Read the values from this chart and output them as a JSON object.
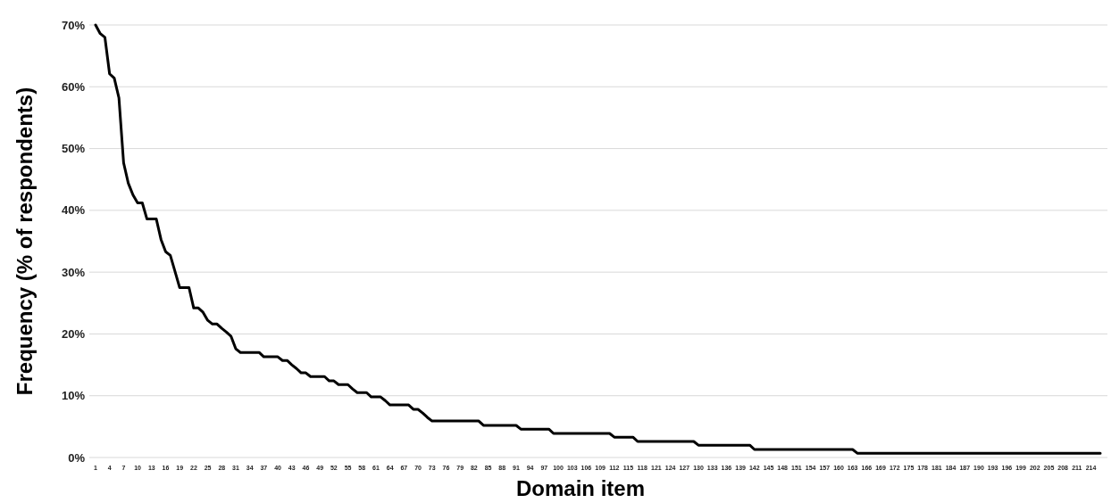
{
  "chart_data": {
    "type": "line",
    "xlabel": "Domain item",
    "ylabel": "Frequency (% of respondents)",
    "categories": [
      "1",
      null,
      null,
      "4",
      null,
      null,
      "7",
      null,
      null,
      "10",
      null,
      null,
      "13",
      null,
      null,
      "16",
      null,
      null,
      "19",
      null,
      null,
      "22",
      null,
      null,
      "25",
      null,
      null,
      "28",
      null,
      null,
      "31",
      null,
      null,
      "34",
      null,
      null,
      "37",
      null,
      null,
      "40",
      null,
      null,
      "43",
      null,
      null,
      "46",
      null,
      null,
      "49",
      null,
      null,
      "52",
      null,
      null,
      "55",
      null,
      null,
      "58",
      null,
      null,
      "61",
      null,
      null,
      "64",
      null,
      null,
      "67",
      null,
      null,
      "70",
      null,
      null,
      "73",
      null,
      null,
      "76",
      null,
      null,
      "79",
      null,
      null,
      "82",
      null,
      null,
      "85",
      null,
      null,
      "88",
      null,
      null,
      "91",
      null,
      null,
      "94",
      null,
      null,
      "97",
      null,
      null,
      "100",
      null,
      null,
      "103",
      null,
      null,
      "106",
      null,
      null,
      "109",
      null,
      null,
      "112",
      null,
      null,
      "115",
      null,
      null,
      "118",
      null,
      null,
      "121",
      null,
      null,
      "124",
      null,
      null,
      "127",
      null,
      null,
      "130",
      null,
      null,
      "133",
      null,
      null,
      "136",
      null,
      null,
      "139",
      null,
      null,
      "142",
      null,
      null,
      "145",
      null,
      null,
      "148",
      null,
      null,
      "151",
      null,
      null,
      "154",
      null,
      null,
      "157",
      null,
      null,
      "160",
      null,
      null,
      "163",
      null,
      null,
      "166",
      null,
      null,
      "169",
      null,
      null,
      "172",
      null,
      null,
      "175",
      null,
      null,
      "178",
      null,
      null,
      "181",
      null,
      null,
      "184",
      null,
      null,
      "187",
      null,
      null,
      "190",
      null,
      null,
      "193",
      null,
      null,
      "196",
      null,
      null,
      "199",
      null,
      null,
      "202",
      null,
      null,
      "205",
      null,
      null,
      "208",
      null,
      null,
      "211",
      null,
      null,
      "214",
      null,
      null
    ],
    "series": [
      {
        "color": "#000000",
        "values": [
          70.0,
          68.6,
          68.0,
          62.1,
          61.4,
          58.2,
          47.7,
          44.4,
          42.5,
          41.2,
          41.2,
          38.6,
          38.6,
          38.6,
          35.3,
          33.3,
          32.7,
          30.1,
          27.5,
          27.5,
          27.5,
          24.2,
          24.2,
          23.5,
          22.2,
          21.6,
          21.6,
          20.9,
          20.3,
          19.6,
          17.6,
          17.0,
          17.0,
          17.0,
          17.0,
          17.0,
          16.3,
          16.3,
          16.3,
          16.3,
          15.7,
          15.7,
          15.0,
          14.4,
          13.7,
          13.7,
          13.1,
          13.1,
          13.1,
          13.1,
          12.4,
          12.4,
          11.8,
          11.8,
          11.8,
          11.1,
          10.5,
          10.5,
          10.5,
          9.8,
          9.8,
          9.8,
          9.2,
          8.5,
          8.5,
          8.5,
          8.5,
          8.5,
          7.8,
          7.8,
          7.2,
          6.5,
          5.9,
          5.9,
          5.9,
          5.9,
          5.9,
          5.9,
          5.9,
          5.9,
          5.9,
          5.9,
          5.9,
          5.2,
          5.2,
          5.2,
          5.2,
          5.2,
          5.2,
          5.2,
          5.2,
          4.6,
          4.6,
          4.6,
          4.6,
          4.6,
          4.6,
          4.6,
          3.9,
          3.9,
          3.9,
          3.9,
          3.9,
          3.9,
          3.9,
          3.9,
          3.9,
          3.9,
          3.9,
          3.9,
          3.9,
          3.3,
          3.3,
          3.3,
          3.3,
          3.3,
          2.6,
          2.6,
          2.6,
          2.6,
          2.6,
          2.6,
          2.6,
          2.6,
          2.6,
          2.6,
          2.6,
          2.6,
          2.6,
          2.0,
          2.0,
          2.0,
          2.0,
          2.0,
          2.0,
          2.0,
          2.0,
          2.0,
          2.0,
          2.0,
          2.0,
          1.3,
          1.3,
          1.3,
          1.3,
          1.3,
          1.3,
          1.3,
          1.3,
          1.3,
          1.3,
          1.3,
          1.3,
          1.3,
          1.3,
          1.3,
          1.3,
          1.3,
          1.3,
          1.3,
          1.3,
          1.3,
          1.3,
          0.7,
          0.7,
          0.7,
          0.7,
          0.7,
          0.7,
          0.7,
          0.7,
          0.7,
          0.7,
          0.7,
          0.7,
          0.7,
          0.7,
          0.7,
          0.7,
          0.7,
          0.7,
          0.7,
          0.7,
          0.7,
          0.7,
          0.7,
          0.7,
          0.7,
          0.7,
          0.7,
          0.7,
          0.7,
          0.7,
          0.7,
          0.7,
          0.7,
          0.7,
          0.7,
          0.7,
          0.7,
          0.7,
          0.7,
          0.7,
          0.7,
          0.7,
          0.7,
          0.7,
          0.7,
          0.7,
          0.7,
          0.7,
          0.7,
          0.7,
          0.7,
          0.7,
          0.7
        ]
      }
    ],
    "ylim": [
      0,
      70
    ],
    "yticks": [
      {
        "value": 0,
        "label": "0%"
      },
      {
        "value": 10,
        "label": "10%"
      },
      {
        "value": 20,
        "label": "20%"
      },
      {
        "value": 30,
        "label": "30%"
      },
      {
        "value": 40,
        "label": "40%"
      },
      {
        "value": 50,
        "label": "50%"
      },
      {
        "value": 60,
        "label": "60%"
      },
      {
        "value": 70,
        "label": "70%"
      }
    ],
    "grid": "y",
    "marker": "none",
    "line_style": "solid"
  }
}
